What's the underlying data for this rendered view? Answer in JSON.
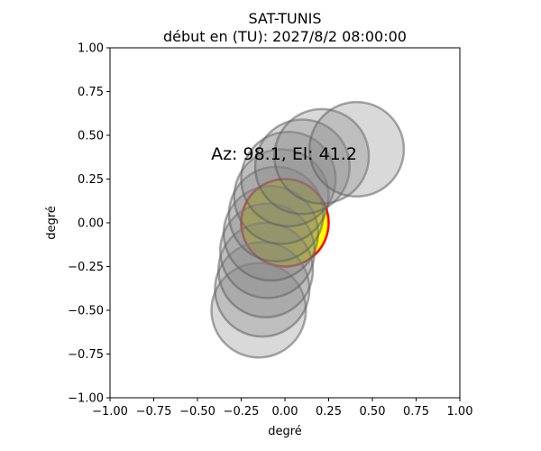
{
  "chart_data": {
    "type": "scatter",
    "title": "SAT-TUNIS",
    "subtitle": "début en (TU): 2027/8/2 08:00:00",
    "xlabel": "degré",
    "ylabel": "degré",
    "xlim": [
      -1.0,
      1.0
    ],
    "ylim": [
      -1.0,
      1.0
    ],
    "xticks": [
      "−1.00",
      "−0.75",
      "−0.50",
      "−0.25",
      "0.00",
      "0.25",
      "0.50",
      "0.75",
      "1.00"
    ],
    "yticks": [
      "−1.00",
      "−0.75",
      "−0.50",
      "−0.25",
      "0.00",
      "0.25",
      "0.50",
      "0.75",
      "1.00"
    ],
    "annotation": "Az: 98.1, El: 41.2",
    "circle_radius": 0.27,
    "track_positions": [
      {
        "x": -0.15,
        "y": -0.5
      },
      {
        "x": -0.13,
        "y": -0.38
      },
      {
        "x": -0.11,
        "y": -0.27
      },
      {
        "x": -0.1,
        "y": -0.16
      },
      {
        "x": -0.08,
        "y": -0.06
      },
      {
        "x": -0.05,
        "y": 0.05
      },
      {
        "x": -0.02,
        "y": 0.15
      },
      {
        "x": 0.02,
        "y": 0.25
      },
      {
        "x": 0.1,
        "y": 0.32
      },
      {
        "x": 0.21,
        "y": 0.38
      },
      {
        "x": 0.41,
        "y": 0.42
      }
    ],
    "reference_circle": {
      "x": 0.0,
      "y": 0.0,
      "r": 0.25
    },
    "colors": {
      "track_fill": "#808080",
      "track_stroke": "#606060",
      "reference_fill": "#ffff00",
      "reference_stroke": "#ff0000"
    }
  }
}
